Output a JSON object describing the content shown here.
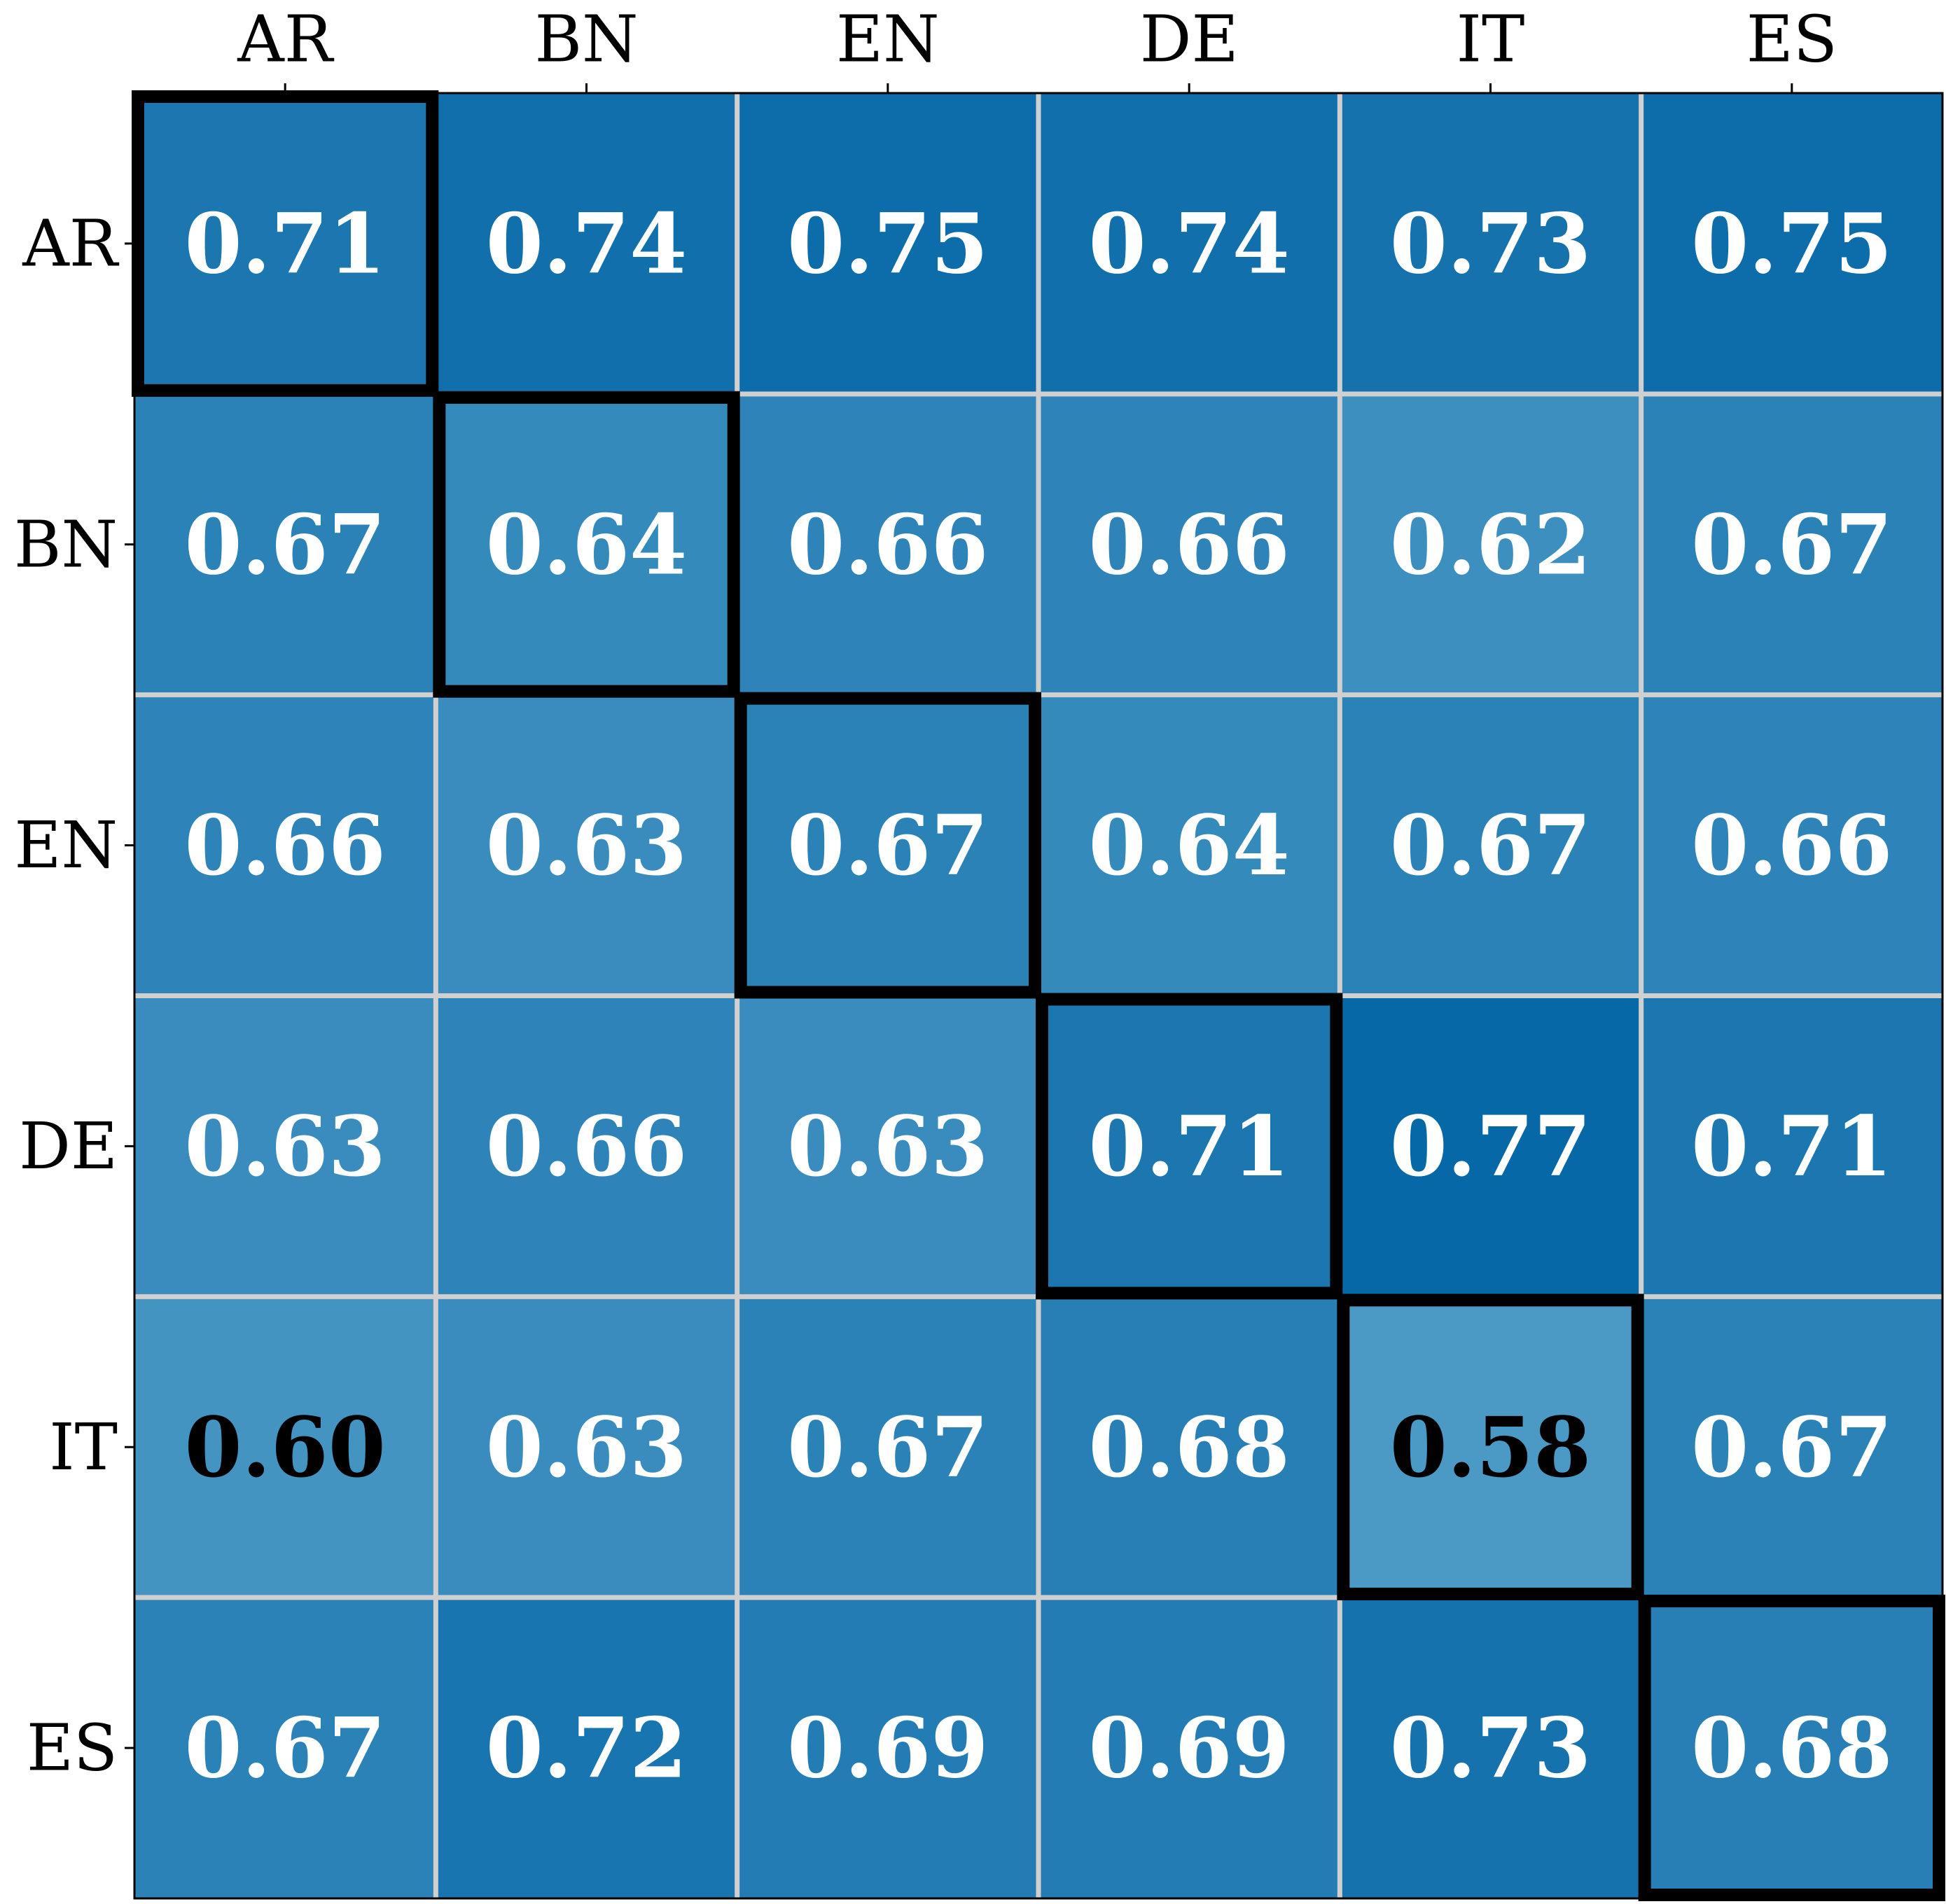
{
  "chart_data": {
    "type": "heatmap",
    "x_categories": [
      "AR",
      "BN",
      "EN",
      "DE",
      "IT",
      "ES"
    ],
    "y_categories": [
      "AR",
      "BN",
      "EN",
      "DE",
      "IT",
      "ES"
    ],
    "values": [
      [
        0.71,
        0.74,
        0.75,
        0.74,
        0.73,
        0.75
      ],
      [
        0.67,
        0.64,
        0.66,
        0.66,
        0.62,
        0.67
      ],
      [
        0.66,
        0.63,
        0.67,
        0.64,
        0.67,
        0.66
      ],
      [
        0.63,
        0.66,
        0.63,
        0.71,
        0.77,
        0.71
      ],
      [
        0.6,
        0.63,
        0.67,
        0.68,
        0.58,
        0.67
      ],
      [
        0.67,
        0.72,
        0.69,
        0.69,
        0.73,
        0.68
      ]
    ],
    "value_labels": [
      [
        "0.71",
        "0.74",
        "0.75",
        "0.74",
        "0.73",
        "0.75"
      ],
      [
        "0.67",
        "0.64",
        "0.66",
        "0.66",
        "0.62",
        "0.67"
      ],
      [
        "0.66",
        "0.63",
        "0.67",
        "0.64",
        "0.67",
        "0.66"
      ],
      [
        "0.63",
        "0.66",
        "0.63",
        "0.71",
        "0.77",
        "0.71"
      ],
      [
        "0.60",
        "0.63",
        "0.67",
        "0.68",
        "0.58",
        "0.67"
      ],
      [
        "0.67",
        "0.72",
        "0.69",
        "0.69",
        "0.73",
        "0.68"
      ]
    ],
    "colors": [
      "#4b99c5",
      "#0668a7"
    ],
    "highlight_diagonal": true,
    "grid": true
  }
}
